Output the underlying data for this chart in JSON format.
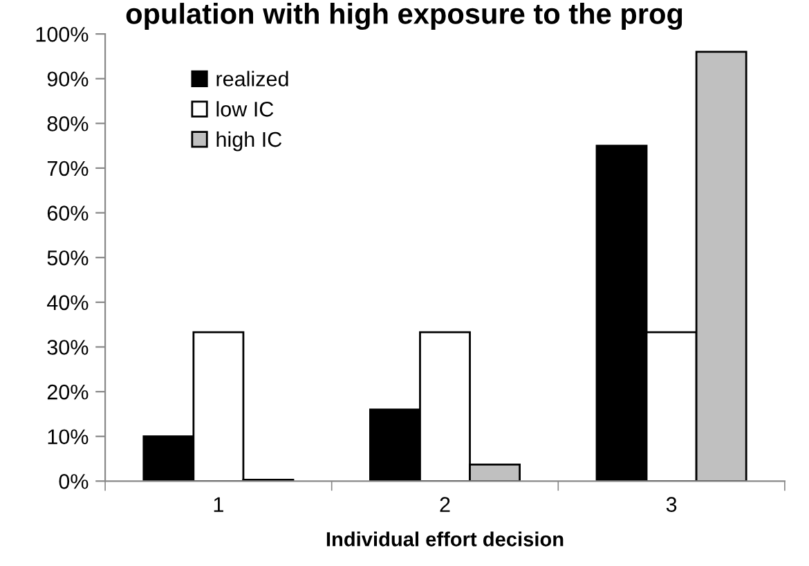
{
  "chart_data": {
    "type": "bar",
    "title": "opulation with high exposure to the prog",
    "xlabel": "Individual effort decision",
    "categories": [
      "1",
      "2",
      "3"
    ],
    "series": [
      {
        "name": "realized",
        "color": "#000000",
        "values": [
          10,
          16,
          75
        ]
      },
      {
        "name": "low IC",
        "color": "#ffffff",
        "values": [
          33.3,
          33.3,
          33.3
        ]
      },
      {
        "name": "high IC",
        "color": "#c0c0c0",
        "values": [
          0.3,
          3.7,
          96
        ]
      }
    ],
    "ylim": [
      0,
      100
    ],
    "yticks": [
      {
        "value": 0,
        "label": "0%"
      },
      {
        "value": 10,
        "label": "10%"
      },
      {
        "value": 20,
        "label": "20%"
      },
      {
        "value": 30,
        "label": "30%"
      },
      {
        "value": 40,
        "label": "40%"
      },
      {
        "value": 50,
        "label": "50%"
      },
      {
        "value": 60,
        "label": "60%"
      },
      {
        "value": 70,
        "label": "70%"
      },
      {
        "value": 80,
        "label": "80%"
      },
      {
        "value": 90,
        "label": "90%"
      },
      {
        "value": 100,
        "label": "100%"
      }
    ],
    "grid": false,
    "legend": "top left"
  }
}
